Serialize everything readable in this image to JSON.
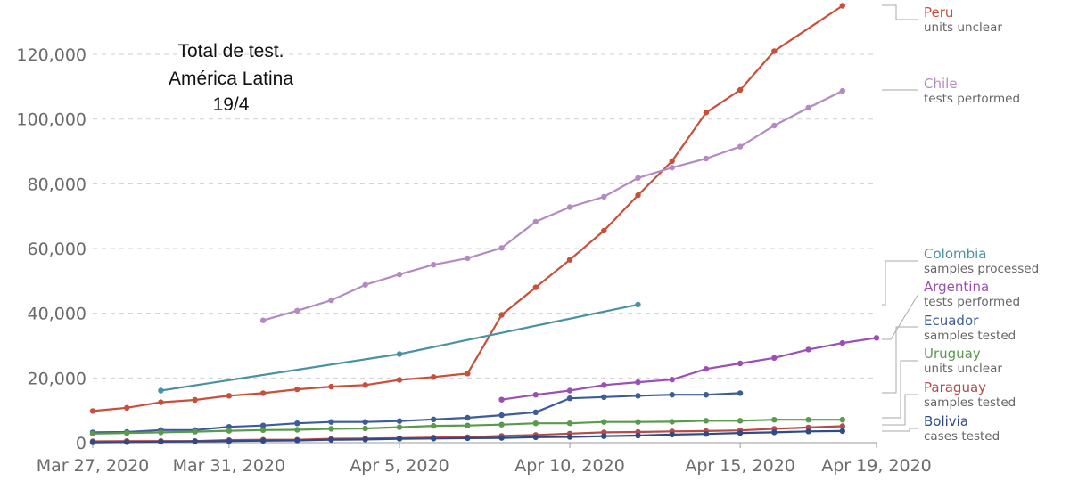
{
  "chart_data": {
    "type": "line",
    "title_lines": [
      "Total de test.",
      "América Latina",
      "19/4"
    ],
    "x_tick_labels": [
      "Mar 27, 2020",
      "Mar 31, 2020",
      "Apr 5, 2020",
      "Apr 10, 2020",
      "Apr 15, 2020",
      "Apr 19, 2020"
    ],
    "y_tick_labels": [
      "0",
      "20,000",
      "40,000",
      "60,000",
      "80,000",
      "100,000",
      "120,000"
    ],
    "xlim": [
      "2020-03-27",
      "2020-04-19"
    ],
    "ylim": [
      0,
      130000
    ],
    "grid": "horizontal dashed",
    "series": [
      {
        "name": "Peru",
        "unit": "units unclear",
        "color": "#c8503a",
        "points": [
          [
            "2020-03-27",
            9800
          ],
          [
            "2020-03-28",
            10800
          ],
          [
            "2020-03-29",
            12500
          ],
          [
            "2020-03-30",
            13200
          ],
          [
            "2020-03-31",
            14500
          ],
          [
            "2020-04-01",
            15300
          ],
          [
            "2020-04-02",
            16500
          ],
          [
            "2020-04-03",
            17300
          ],
          [
            "2020-04-04",
            17800
          ],
          [
            "2020-04-05",
            19400
          ],
          [
            "2020-04-06",
            20300
          ],
          [
            "2020-04-07",
            21400
          ],
          [
            "2020-04-08",
            39500
          ],
          [
            "2020-04-09",
            48000
          ],
          [
            "2020-04-10",
            56500
          ],
          [
            "2020-04-11",
            65500
          ],
          [
            "2020-04-12",
            76500
          ],
          [
            "2020-04-13",
            87000
          ],
          [
            "2020-04-14",
            102000
          ],
          [
            "2020-04-15",
            109000
          ],
          [
            "2020-04-16",
            121000
          ],
          [
            "2020-04-18",
            135000
          ]
        ]
      },
      {
        "name": "Chile",
        "unit": "tests performed",
        "color": "#b58ac2",
        "points": [
          [
            "2020-04-01",
            37800
          ],
          [
            "2020-04-02",
            40800
          ],
          [
            "2020-04-03",
            44000
          ],
          [
            "2020-04-04",
            48800
          ],
          [
            "2020-04-05",
            52000
          ],
          [
            "2020-04-06",
            55000
          ],
          [
            "2020-04-07",
            57000
          ],
          [
            "2020-04-08",
            60200
          ],
          [
            "2020-04-09",
            68300
          ],
          [
            "2020-04-10",
            72800
          ],
          [
            "2020-04-11",
            76000
          ],
          [
            "2020-04-12",
            81800
          ],
          [
            "2020-04-13",
            85000
          ],
          [
            "2020-04-14",
            87800
          ],
          [
            "2020-04-15",
            91500
          ],
          [
            "2020-04-16",
            98000
          ],
          [
            "2020-04-17",
            103500
          ],
          [
            "2020-04-18",
            108700
          ]
        ]
      },
      {
        "name": "Colombia",
        "unit": "samples processed",
        "color": "#4a91a3",
        "points": [
          [
            "2020-03-29",
            16100
          ],
          [
            "2020-04-05",
            27400
          ],
          [
            "2020-04-12",
            42700
          ]
        ]
      },
      {
        "name": "Argentina",
        "unit": "tests performed",
        "color": "#9b4fb3",
        "points": [
          [
            "2020-04-08",
            13300
          ],
          [
            "2020-04-09",
            14800
          ],
          [
            "2020-04-10",
            16100
          ],
          [
            "2020-04-11",
            17800
          ],
          [
            "2020-04-12",
            18700
          ],
          [
            "2020-04-13",
            19500
          ],
          [
            "2020-04-14",
            22800
          ],
          [
            "2020-04-15",
            24500
          ],
          [
            "2020-04-16",
            26200
          ],
          [
            "2020-04-17",
            28800
          ],
          [
            "2020-04-18",
            30800
          ],
          [
            "2020-04-19",
            32400
          ]
        ]
      },
      {
        "name": "Ecuador",
        "unit": "samples tested",
        "color": "#3d5d99",
        "points": [
          [
            "2020-03-27",
            3200
          ],
          [
            "2020-03-28",
            3300
          ],
          [
            "2020-03-29",
            3900
          ],
          [
            "2020-03-30",
            3900
          ],
          [
            "2020-03-31",
            4900
          ],
          [
            "2020-04-01",
            5300
          ],
          [
            "2020-04-02",
            6000
          ],
          [
            "2020-04-03",
            6400
          ],
          [
            "2020-04-04",
            6400
          ],
          [
            "2020-04-05",
            6700
          ],
          [
            "2020-04-06",
            7200
          ],
          [
            "2020-04-07",
            7700
          ],
          [
            "2020-04-08",
            8500
          ],
          [
            "2020-04-09",
            9400
          ],
          [
            "2020-04-10",
            13700
          ],
          [
            "2020-04-11",
            14100
          ],
          [
            "2020-04-12",
            14500
          ],
          [
            "2020-04-13",
            14800
          ],
          [
            "2020-04-14",
            14800
          ],
          [
            "2020-04-15",
            15300
          ]
        ]
      },
      {
        "name": "Uruguay",
        "unit": "units unclear",
        "color": "#5a9a4c",
        "points": [
          [
            "2020-03-27",
            2800
          ],
          [
            "2020-03-28",
            3000
          ],
          [
            "2020-03-29",
            3200
          ],
          [
            "2020-03-30",
            3400
          ],
          [
            "2020-03-31",
            3700
          ],
          [
            "2020-04-01",
            3900
          ],
          [
            "2020-04-02",
            4000
          ],
          [
            "2020-04-03",
            4300
          ],
          [
            "2020-04-04",
            4400
          ],
          [
            "2020-04-05",
            4800
          ],
          [
            "2020-04-06",
            5200
          ],
          [
            "2020-04-07",
            5300
          ],
          [
            "2020-04-08",
            5600
          ],
          [
            "2020-04-09",
            6000
          ],
          [
            "2020-04-10",
            6000
          ],
          [
            "2020-04-11",
            6400
          ],
          [
            "2020-04-12",
            6400
          ],
          [
            "2020-04-13",
            6500
          ],
          [
            "2020-04-14",
            6800
          ],
          [
            "2020-04-15",
            6800
          ],
          [
            "2020-04-16",
            7100
          ],
          [
            "2020-04-17",
            7100
          ],
          [
            "2020-04-18",
            7100
          ]
        ]
      },
      {
        "name": "Paraguay",
        "unit": "samples tested",
        "color": "#b54b4b",
        "points": [
          [
            "2020-03-27",
            400
          ],
          [
            "2020-03-28",
            500
          ],
          [
            "2020-03-29",
            500
          ],
          [
            "2020-03-30",
            500
          ],
          [
            "2020-03-31",
            800
          ],
          [
            "2020-04-01",
            900
          ],
          [
            "2020-04-02",
            900
          ],
          [
            "2020-04-03",
            1200
          ],
          [
            "2020-04-04",
            1300
          ],
          [
            "2020-04-05",
            1400
          ],
          [
            "2020-04-06",
            1600
          ],
          [
            "2020-04-07",
            1700
          ],
          [
            "2020-04-08",
            2100
          ],
          [
            "2020-04-09",
            2400
          ],
          [
            "2020-04-10",
            2800
          ],
          [
            "2020-04-11",
            3200
          ],
          [
            "2020-04-12",
            3300
          ],
          [
            "2020-04-13",
            3500
          ],
          [
            "2020-04-14",
            3600
          ],
          [
            "2020-04-15",
            3800
          ],
          [
            "2020-04-16",
            4300
          ],
          [
            "2020-04-17",
            4700
          ],
          [
            "2020-04-18",
            5100
          ]
        ]
      },
      {
        "name": "Bolivia",
        "unit": "cases tested",
        "color": "#2f4a88",
        "points": [
          [
            "2020-03-27",
            100
          ],
          [
            "2020-03-28",
            200
          ],
          [
            "2020-03-29",
            300
          ],
          [
            "2020-03-30",
            400
          ],
          [
            "2020-03-31",
            500
          ],
          [
            "2020-04-01",
            600
          ],
          [
            "2020-04-02",
            700
          ],
          [
            "2020-04-03",
            900
          ],
          [
            "2020-04-04",
            1000
          ],
          [
            "2020-04-05",
            1200
          ],
          [
            "2020-04-06",
            1300
          ],
          [
            "2020-04-07",
            1400
          ],
          [
            "2020-04-08",
            1500
          ],
          [
            "2020-04-09",
            1700
          ],
          [
            "2020-04-10",
            1800
          ],
          [
            "2020-04-11",
            2000
          ],
          [
            "2020-04-12",
            2200
          ],
          [
            "2020-04-13",
            2500
          ],
          [
            "2020-04-14",
            2700
          ],
          [
            "2020-04-15",
            3000
          ],
          [
            "2020-04-16",
            3200
          ],
          [
            "2020-04-17",
            3500
          ],
          [
            "2020-04-18",
            3600
          ]
        ]
      }
    ]
  }
}
